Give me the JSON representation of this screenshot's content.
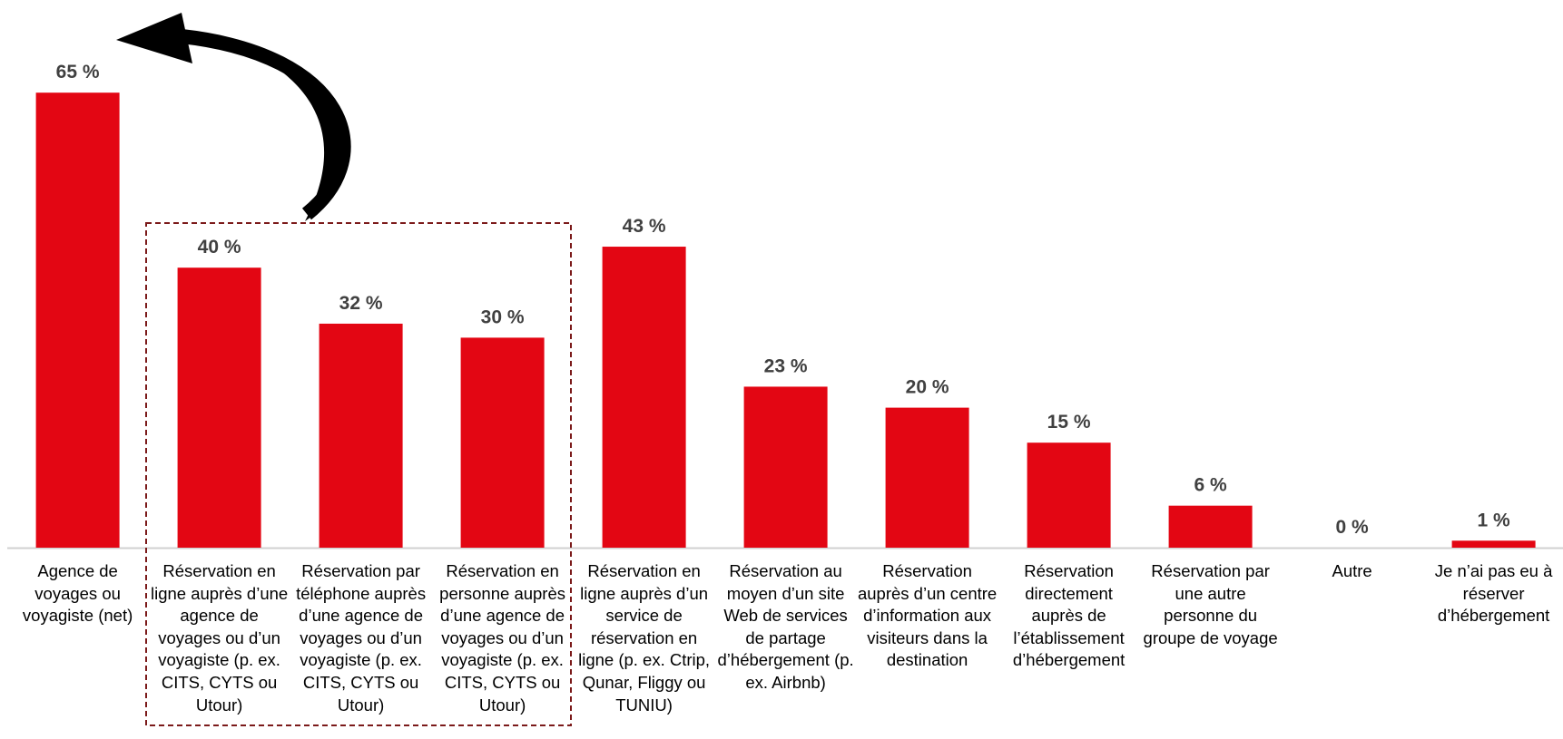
{
  "chart_data": {
    "type": "bar",
    "categories": [
      "Agence de voyages ou voyagiste (net)",
      "Réservation en ligne auprès d’une agence de voyages ou d’un voyagiste (p. ex. CITS, CYTS ou Utour)",
      "Réservation par téléphone auprès d’une agence de voyages ou d’un voyagiste (p. ex. CITS, CYTS ou Utour)",
      "Réservation en personne auprès d’une agence de voyages ou d’un voyagiste (p. ex. CITS, CYTS ou Utour)",
      "Réservation en ligne auprès d’un service de réservation en ligne (p. ex. Ctrip, Qunar, Fliggy ou TUNIU)",
      "Réservation au moyen d’un site Web de services de partage d’hébergement (p. ex. Airbnb)",
      "Réservation auprès d’un centre d’information aux visiteurs dans la destination",
      "Réservation directement auprès de l’établissement d’hébergement",
      "Réservation par une autre personne du groupe de voyage",
      "Autre",
      "Je n’ai pas eu à réserver d’hébergement"
    ],
    "values": [
      65,
      40,
      32,
      30,
      43,
      23,
      20,
      15,
      6,
      0,
      1
    ],
    "value_labels": [
      "65 %",
      "40 %",
      "32 %",
      "30 %",
      "43 %",
      "23 %",
      "20 %",
      "15 %",
      "6 %",
      "0 %",
      "1 %"
    ],
    "color": "#e30613"
  }
}
